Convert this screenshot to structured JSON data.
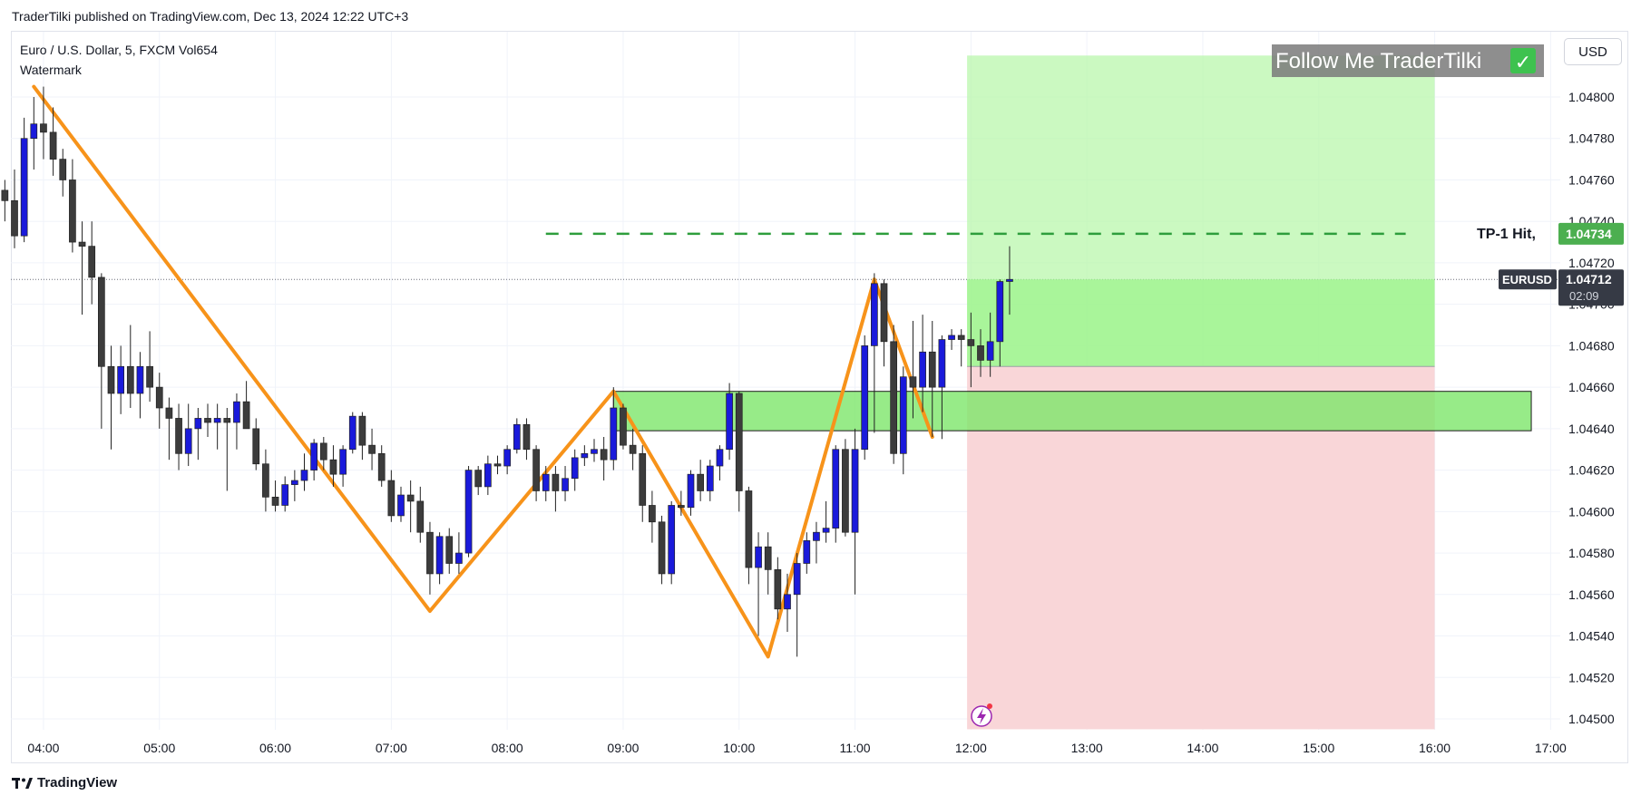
{
  "header": {
    "published": "TraderTilki published on TradingView.com, Dec 13, 2024 12:22 UTC+3",
    "symbol_line": "Euro / U.S. Dollar, 5, FXCM  Vol654",
    "watermark_label": "Watermark",
    "currency_button": "USD"
  },
  "footer": {
    "brand": "TradingView"
  },
  "colors": {
    "up_candle": "#1a1adb",
    "down_candle": "#3c3c3c",
    "zigzag": "#f7931a",
    "target_zone": "#b7f7a9",
    "stop_zone": "#f9d4d6",
    "supply_box": "#7de66a",
    "tp_line": "#2e9e3c",
    "price_tag_bg": "#4caf50",
    "current_tag_bg": "#363a45"
  },
  "chart_data": {
    "type": "candlestick",
    "symbol": "EURUSD",
    "timeframe": "5",
    "x_ticks": [
      "04:00",
      "05:00",
      "06:00",
      "07:00",
      "08:00",
      "09:00",
      "10:00",
      "11:00",
      "12:00",
      "13:00",
      "14:00",
      "15:00",
      "16:00",
      "17:00"
    ],
    "y_ticks": [
      "1.04500",
      "1.04520",
      "1.04540",
      "1.04560",
      "1.04580",
      "1.04600",
      "1.04620",
      "1.04640",
      "1.04660",
      "1.04680",
      "1.04700",
      "1.04720",
      "1.04740",
      "1.04760",
      "1.04780",
      "1.04800"
    ],
    "ylim": [
      1.0449,
      1.0482
    ],
    "candles": [
      {
        "t": "03:40",
        "o": 1.04755,
        "h": 1.0476,
        "l": 1.0474,
        "c": 1.0475
      },
      {
        "t": "03:45",
        "o": 1.0475,
        "h": 1.04765,
        "l": 1.04727,
        "c": 1.04733
      },
      {
        "t": "03:50",
        "o": 1.04733,
        "h": 1.0479,
        "l": 1.0473,
        "c": 1.0478
      },
      {
        "t": "03:55",
        "o": 1.0478,
        "h": 1.048,
        "l": 1.04765,
        "c": 1.04787
      },
      {
        "t": "04:00",
        "o": 1.04787,
        "h": 1.04805,
        "l": 1.0477,
        "c": 1.04783
      },
      {
        "t": "04:05",
        "o": 1.04783,
        "h": 1.04795,
        "l": 1.04762,
        "c": 1.0477
      },
      {
        "t": "04:10",
        "o": 1.0477,
        "h": 1.04775,
        "l": 1.04752,
        "c": 1.0476
      },
      {
        "t": "04:15",
        "o": 1.0476,
        "h": 1.0477,
        "l": 1.04725,
        "c": 1.0473
      },
      {
        "t": "04:20",
        "o": 1.0473,
        "h": 1.0474,
        "l": 1.04695,
        "c": 1.04728
      },
      {
        "t": "04:25",
        "o": 1.04728,
        "h": 1.0474,
        "l": 1.047,
        "c": 1.04713
      },
      {
        "t": "04:30",
        "o": 1.04713,
        "h": 1.04715,
        "l": 1.0464,
        "c": 1.0467
      },
      {
        "t": "04:35",
        "o": 1.0467,
        "h": 1.0468,
        "l": 1.0463,
        "c": 1.04657
      },
      {
        "t": "04:40",
        "o": 1.04657,
        "h": 1.0468,
        "l": 1.04647,
        "c": 1.0467
      },
      {
        "t": "04:45",
        "o": 1.0467,
        "h": 1.0469,
        "l": 1.0465,
        "c": 1.04657
      },
      {
        "t": "04:50",
        "o": 1.04657,
        "h": 1.04677,
        "l": 1.04645,
        "c": 1.0467
      },
      {
        "t": "04:55",
        "o": 1.0467,
        "h": 1.04687,
        "l": 1.04653,
        "c": 1.0466
      },
      {
        "t": "05:00",
        "o": 1.0466,
        "h": 1.04667,
        "l": 1.0464,
        "c": 1.0465
      },
      {
        "t": "05:05",
        "o": 1.0465,
        "h": 1.04655,
        "l": 1.04625,
        "c": 1.04645
      },
      {
        "t": "05:10",
        "o": 1.04645,
        "h": 1.04652,
        "l": 1.0462,
        "c": 1.04628
      },
      {
        "t": "05:15",
        "o": 1.04628,
        "h": 1.04652,
        "l": 1.04622,
        "c": 1.0464
      },
      {
        "t": "05:20",
        "o": 1.0464,
        "h": 1.0465,
        "l": 1.04625,
        "c": 1.04645
      },
      {
        "t": "05:25",
        "o": 1.04645,
        "h": 1.04652,
        "l": 1.04636,
        "c": 1.04643
      },
      {
        "t": "05:30",
        "o": 1.04643,
        "h": 1.04652,
        "l": 1.0463,
        "c": 1.04645
      },
      {
        "t": "05:35",
        "o": 1.04645,
        "h": 1.0465,
        "l": 1.0461,
        "c": 1.04643
      },
      {
        "t": "05:40",
        "o": 1.04643,
        "h": 1.04657,
        "l": 1.0463,
        "c": 1.04653
      },
      {
        "t": "05:45",
        "o": 1.04653,
        "h": 1.04663,
        "l": 1.0464,
        "c": 1.0464
      },
      {
        "t": "05:50",
        "o": 1.0464,
        "h": 1.04645,
        "l": 1.0462,
        "c": 1.04623
      },
      {
        "t": "05:55",
        "o": 1.04623,
        "h": 1.0463,
        "l": 1.046,
        "c": 1.04607
      },
      {
        "t": "06:00",
        "o": 1.04607,
        "h": 1.04615,
        "l": 1.046,
        "c": 1.04603
      },
      {
        "t": "06:05",
        "o": 1.04603,
        "h": 1.04617,
        "l": 1.046,
        "c": 1.04613
      },
      {
        "t": "06:10",
        "o": 1.04613,
        "h": 1.0462,
        "l": 1.04605,
        "c": 1.04615
      },
      {
        "t": "06:15",
        "o": 1.04615,
        "h": 1.04628,
        "l": 1.0461,
        "c": 1.0462
      },
      {
        "t": "06:20",
        "o": 1.0462,
        "h": 1.04635,
        "l": 1.04615,
        "c": 1.04633
      },
      {
        "t": "06:25",
        "o": 1.04633,
        "h": 1.04636,
        "l": 1.0462,
        "c": 1.04625
      },
      {
        "t": "06:30",
        "o": 1.04625,
        "h": 1.04632,
        "l": 1.04612,
        "c": 1.04618
      },
      {
        "t": "06:35",
        "o": 1.04618,
        "h": 1.04632,
        "l": 1.04612,
        "c": 1.0463
      },
      {
        "t": "06:40",
        "o": 1.0463,
        "h": 1.04648,
        "l": 1.04628,
        "c": 1.04646
      },
      {
        "t": "06:45",
        "o": 1.04646,
        "h": 1.04648,
        "l": 1.04625,
        "c": 1.04632
      },
      {
        "t": "06:50",
        "o": 1.04632,
        "h": 1.0464,
        "l": 1.0462,
        "c": 1.04628
      },
      {
        "t": "06:55",
        "o": 1.04628,
        "h": 1.04632,
        "l": 1.04612,
        "c": 1.04615
      },
      {
        "t": "07:00",
        "o": 1.04615,
        "h": 1.0462,
        "l": 1.04595,
        "c": 1.04598
      },
      {
        "t": "07:05",
        "o": 1.04598,
        "h": 1.04612,
        "l": 1.04595,
        "c": 1.04608
      },
      {
        "t": "07:10",
        "o": 1.04608,
        "h": 1.04615,
        "l": 1.0459,
        "c": 1.04605
      },
      {
        "t": "07:15",
        "o": 1.04605,
        "h": 1.04612,
        "l": 1.04585,
        "c": 1.0459
      },
      {
        "t": "07:20",
        "o": 1.0459,
        "h": 1.04595,
        "l": 1.0456,
        "c": 1.0457
      },
      {
        "t": "07:25",
        "o": 1.0457,
        "h": 1.0459,
        "l": 1.04565,
        "c": 1.04588
      },
      {
        "t": "07:30",
        "o": 1.04588,
        "h": 1.04592,
        "l": 1.0457,
        "c": 1.04575
      },
      {
        "t": "07:35",
        "o": 1.04575,
        "h": 1.0459,
        "l": 1.0457,
        "c": 1.0458
      },
      {
        "t": "07:40",
        "o": 1.0458,
        "h": 1.04622,
        "l": 1.04578,
        "c": 1.0462
      },
      {
        "t": "07:45",
        "o": 1.0462,
        "h": 1.04622,
        "l": 1.04608,
        "c": 1.04612
      },
      {
        "t": "07:50",
        "o": 1.04612,
        "h": 1.04627,
        "l": 1.04608,
        "c": 1.04623
      },
      {
        "t": "07:55",
        "o": 1.04623,
        "h": 1.04627,
        "l": 1.04618,
        "c": 1.04622
      },
      {
        "t": "08:00",
        "o": 1.04622,
        "h": 1.04632,
        "l": 1.04618,
        "c": 1.0463
      },
      {
        "t": "08:05",
        "o": 1.0463,
        "h": 1.04645,
        "l": 1.04628,
        "c": 1.04642
      },
      {
        "t": "08:10",
        "o": 1.04642,
        "h": 1.04645,
        "l": 1.04625,
        "c": 1.0463
      },
      {
        "t": "08:15",
        "o": 1.0463,
        "h": 1.04632,
        "l": 1.04605,
        "c": 1.0461
      },
      {
        "t": "08:20",
        "o": 1.0461,
        "h": 1.04622,
        "l": 1.04605,
        "c": 1.04618
      },
      {
        "t": "08:25",
        "o": 1.04618,
        "h": 1.04622,
        "l": 1.046,
        "c": 1.0461
      },
      {
        "t": "08:30",
        "o": 1.0461,
        "h": 1.04622,
        "l": 1.04605,
        "c": 1.04616
      },
      {
        "t": "08:35",
        "o": 1.04616,
        "h": 1.0463,
        "l": 1.0461,
        "c": 1.04626
      },
      {
        "t": "08:40",
        "o": 1.04626,
        "h": 1.04632,
        "l": 1.04622,
        "c": 1.04628
      },
      {
        "t": "08:45",
        "o": 1.04628,
        "h": 1.04635,
        "l": 1.04624,
        "c": 1.0463
      },
      {
        "t": "08:50",
        "o": 1.0463,
        "h": 1.04636,
        "l": 1.04615,
        "c": 1.04625
      },
      {
        "t": "08:55",
        "o": 1.04625,
        "h": 1.0466,
        "l": 1.0462,
        "c": 1.0465
      },
      {
        "t": "09:00",
        "o": 1.0465,
        "h": 1.04652,
        "l": 1.0463,
        "c": 1.04632
      },
      {
        "t": "09:05",
        "o": 1.04632,
        "h": 1.0464,
        "l": 1.0462,
        "c": 1.04628
      },
      {
        "t": "09:10",
        "o": 1.04628,
        "h": 1.04632,
        "l": 1.04595,
        "c": 1.04603
      },
      {
        "t": "09:15",
        "o": 1.04603,
        "h": 1.0461,
        "l": 1.04585,
        "c": 1.04595
      },
      {
        "t": "09:20",
        "o": 1.04595,
        "h": 1.04598,
        "l": 1.04565,
        "c": 1.0457
      },
      {
        "t": "09:25",
        "o": 1.0457,
        "h": 1.04605,
        "l": 1.04565,
        "c": 1.04603
      },
      {
        "t": "09:30",
        "o": 1.04603,
        "h": 1.0461,
        "l": 1.04598,
        "c": 1.04602
      },
      {
        "t": "09:35",
        "o": 1.04602,
        "h": 1.0462,
        "l": 1.04598,
        "c": 1.04618
      },
      {
        "t": "09:40",
        "o": 1.04618,
        "h": 1.04625,
        "l": 1.04605,
        "c": 1.0461
      },
      {
        "t": "09:45",
        "o": 1.0461,
        "h": 1.04625,
        "l": 1.04605,
        "c": 1.04622
      },
      {
        "t": "09:50",
        "o": 1.04622,
        "h": 1.04632,
        "l": 1.04615,
        "c": 1.0463
      },
      {
        "t": "09:55",
        "o": 1.0463,
        "h": 1.04662,
        "l": 1.04625,
        "c": 1.04657
      },
      {
        "t": "10:00",
        "o": 1.04657,
        "h": 1.04658,
        "l": 1.046,
        "c": 1.0461
      },
      {
        "t": "10:05",
        "o": 1.0461,
        "h": 1.04612,
        "l": 1.04565,
        "c": 1.04573
      },
      {
        "t": "10:10",
        "o": 1.04573,
        "h": 1.0459,
        "l": 1.0454,
        "c": 1.04583
      },
      {
        "t": "10:15",
        "o": 1.04583,
        "h": 1.0459,
        "l": 1.0456,
        "c": 1.04572
      },
      {
        "t": "10:20",
        "o": 1.04572,
        "h": 1.04578,
        "l": 1.04548,
        "c": 1.04553
      },
      {
        "t": "10:25",
        "o": 1.04553,
        "h": 1.0457,
        "l": 1.04542,
        "c": 1.0456
      },
      {
        "t": "10:30",
        "o": 1.0456,
        "h": 1.0458,
        "l": 1.0453,
        "c": 1.04575
      },
      {
        "t": "10:35",
        "o": 1.04575,
        "h": 1.0459,
        "l": 1.0457,
        "c": 1.04586
      },
      {
        "t": "10:40",
        "o": 1.04586,
        "h": 1.04595,
        "l": 1.04575,
        "c": 1.0459
      },
      {
        "t": "10:45",
        "o": 1.0459,
        "h": 1.04605,
        "l": 1.04585,
        "c": 1.04592
      },
      {
        "t": "10:50",
        "o": 1.04592,
        "h": 1.04632,
        "l": 1.04585,
        "c": 1.0463
      },
      {
        "t": "10:55",
        "o": 1.0463,
        "h": 1.04635,
        "l": 1.04588,
        "c": 1.0459
      },
      {
        "t": "11:00",
        "o": 1.0459,
        "h": 1.0464,
        "l": 1.0456,
        "c": 1.0463
      },
      {
        "t": "11:05",
        "o": 1.0463,
        "h": 1.04685,
        "l": 1.04625,
        "c": 1.0468
      },
      {
        "t": "11:10",
        "o": 1.0468,
        "h": 1.04715,
        "l": 1.04638,
        "c": 1.0471
      },
      {
        "t": "11:15",
        "o": 1.0471,
        "h": 1.04712,
        "l": 1.0467,
        "c": 1.04682
      },
      {
        "t": "11:20",
        "o": 1.04682,
        "h": 1.0469,
        "l": 1.04623,
        "c": 1.04628
      },
      {
        "t": "11:25",
        "o": 1.04628,
        "h": 1.0467,
        "l": 1.04618,
        "c": 1.04665
      },
      {
        "t": "11:30",
        "o": 1.04665,
        "h": 1.04692,
        "l": 1.04645,
        "c": 1.0466
      },
      {
        "t": "11:35",
        "o": 1.0466,
        "h": 1.04695,
        "l": 1.04648,
        "c": 1.04677
      },
      {
        "t": "11:40",
        "o": 1.04677,
        "h": 1.04692,
        "l": 1.04636,
        "c": 1.0466
      },
      {
        "t": "11:45",
        "o": 1.0466,
        "h": 1.04685,
        "l": 1.04635,
        "c": 1.04683
      },
      {
        "t": "11:50",
        "o": 1.04683,
        "h": 1.04688,
        "l": 1.04678,
        "c": 1.04685
      },
      {
        "t": "11:55",
        "o": 1.04685,
        "h": 1.04688,
        "l": 1.0467,
        "c": 1.04683
      },
      {
        "t": "12:00",
        "o": 1.04683,
        "h": 1.04696,
        "l": 1.0466,
        "c": 1.0468
      },
      {
        "t": "12:05",
        "o": 1.0468,
        "h": 1.04688,
        "l": 1.04665,
        "c": 1.04673
      },
      {
        "t": "12:10",
        "o": 1.04673,
        "h": 1.04696,
        "l": 1.04665,
        "c": 1.04682
      },
      {
        "t": "12:15",
        "o": 1.04682,
        "h": 1.04712,
        "l": 1.0467,
        "c": 1.04711
      },
      {
        "t": "12:20",
        "o": 1.04711,
        "h": 1.04728,
        "l": 1.04695,
        "c": 1.04712
      }
    ],
    "zigzag": [
      {
        "t": "03:55",
        "p": 1.04805
      },
      {
        "t": "07:20",
        "p": 1.04552
      },
      {
        "t": "08:55",
        "p": 1.04658
      },
      {
        "t": "10:15",
        "p": 1.0453
      },
      {
        "t": "11:10",
        "p": 1.04712
      },
      {
        "t": "11:40",
        "p": 1.04636
      }
    ],
    "position": {
      "start": "11:58",
      "end": "16:00",
      "entry": 1.0467,
      "target": 1.0482,
      "stop": 1.04495
    },
    "supply_zone": {
      "start": "08:55",
      "end": "16:50",
      "top": 1.04658,
      "bottom": 1.04639
    },
    "tp_line": {
      "start": "08:20",
      "end": "15:45",
      "price": 1.04734,
      "label": "TP-1 Hit,"
    },
    "last_price": {
      "symbol": "EURUSD",
      "price": "1.04712",
      "countdown": "02:09",
      "value": 1.04712
    },
    "tp_tag": {
      "price": "1.04734",
      "value": 1.04734
    },
    "watermark_text": "Follow Me TraderTilki",
    "checkmark": "✓"
  }
}
